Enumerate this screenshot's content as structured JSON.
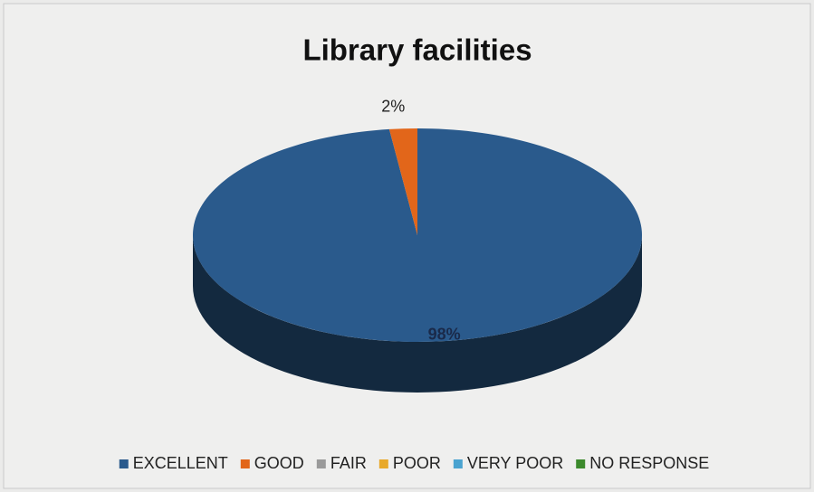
{
  "chart_data": {
    "type": "pie",
    "title": "Library facilities",
    "categories": [
      "EXCELLENT",
      "GOOD",
      "FAIR",
      "POOR",
      "VERY POOR",
      "NO RESPONSE"
    ],
    "values": [
      98,
      2,
      0,
      0,
      0,
      0
    ],
    "value_labels": [
      "98%",
      "2%",
      null,
      null,
      null,
      null
    ],
    "colors": [
      "#2a5a8c",
      "#e2661a",
      "#9a9a9a",
      "#e8a92a",
      "#4aa3d0",
      "#3c8a2c"
    ],
    "legend": "bottom"
  }
}
